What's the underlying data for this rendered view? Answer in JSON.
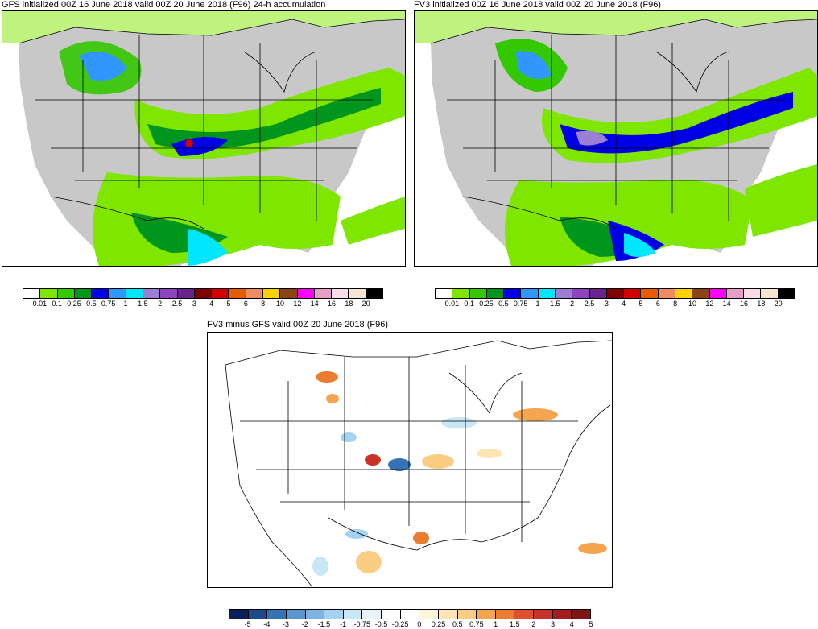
{
  "panels": {
    "gfs": {
      "title": "GFS initialized 00Z 16 June 2018 valid 00Z 20 June 2018 (F96) 24-h accumulation"
    },
    "fv3": {
      "title": "FV3 initialized 00Z 16 June 2018 valid 00Z 20 June 2018 (F96)"
    },
    "diff": {
      "title": "FV3 minus GFS valid 00Z 20 June 2018 (F96)"
    }
  },
  "precip_colorbar": {
    "colors": [
      "#ffffff",
      "#7fe600",
      "#33c800",
      "#00961e",
      "#0000e6",
      "#3296ff",
      "#00e6ff",
      "#9b7fd2",
      "#8c44bf",
      "#6a238c",
      "#7f0000",
      "#d20000",
      "#e65a00",
      "#f08c64",
      "#ffd200",
      "#8b4513",
      "#ff00ff",
      "#e6a0c8",
      "#fadce6",
      "#f5e6d2",
      "#000000"
    ],
    "labels": [
      "0.01",
      "0.1",
      "0.25",
      "0.5",
      "0.75",
      "1",
      "1.5",
      "2",
      "2.5",
      "3",
      "4",
      "5",
      "6",
      "8",
      "10",
      "12",
      "14",
      "16",
      "18",
      "20"
    ]
  },
  "diff_colorbar": {
    "colors": [
      "#0a1e5a",
      "#1e4a8c",
      "#3473b4",
      "#5a96cd",
      "#7fb4e1",
      "#a5d2f0",
      "#c8e6f5",
      "#e6f3fa",
      "#ffffff",
      "#ffffff",
      "#fff5dc",
      "#fde6b4",
      "#fbcd82",
      "#f5a550",
      "#eb7d32",
      "#e0502d",
      "#c83228",
      "#a01e1e",
      "#7f1414"
    ],
    "labels": [
      "-5",
      "-4",
      "-3",
      "-2",
      "-1.5",
      "-1",
      "-0.75",
      "-0.5",
      "-0.25",
      "0",
      "0.25",
      "0.5",
      "0.75",
      "1",
      "1.5",
      "2",
      "3",
      "4",
      "5"
    ]
  }
}
